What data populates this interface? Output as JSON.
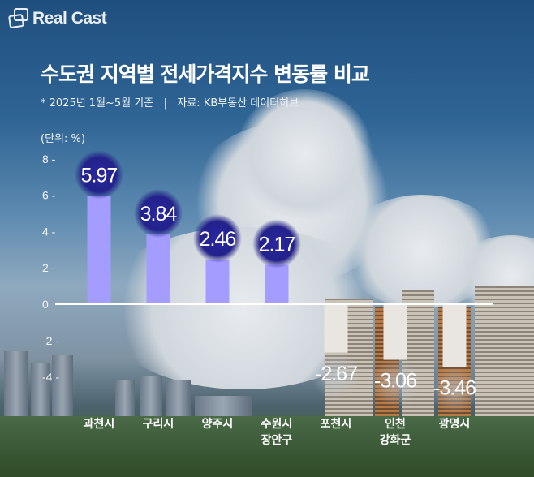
{
  "brand": {
    "logo_text": "Real Cast"
  },
  "header": {
    "title": "수도권 지역별 전세가격지수 변동률 비교",
    "subtitle": "* 2025년 1월~5월 기준   |   자료: KB부동산 데이터허브"
  },
  "chart_data": {
    "type": "bar",
    "title": "수도권 지역별 전세가격지수 변동률 비교",
    "unit_label": "(단위: %)",
    "categories": [
      "과천시",
      "구리시",
      "양주시",
      "수원시\n장안구",
      "포천시",
      "인천\n강화군",
      "광명시"
    ],
    "values": [
      5.97,
      3.84,
      2.46,
      2.17,
      -2.67,
      -3.06,
      -3.46
    ],
    "value_labels": [
      "5.97",
      "3.84",
      "2.46",
      "2.17",
      "-2.67",
      "-3.06",
      "-3.46"
    ],
    "y_ticks": [
      "8",
      "6",
      "4",
      "2",
      "0",
      "-2",
      "-4"
    ],
    "ylim": [
      -5,
      8
    ],
    "grid": false,
    "colors": {
      "positive": "#a49cff",
      "negative": "#e9e6e1",
      "positive_label_bg": "#23218a"
    }
  }
}
